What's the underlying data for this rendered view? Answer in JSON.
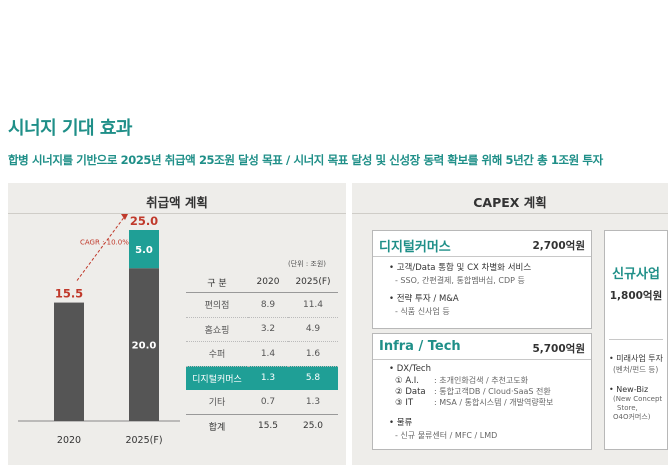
{
  "page": {
    "title": "시너지 기대 효과",
    "subtitle": "합병 시너지를 기반으로 2025년 취급액 25조원 달성 목표 / 시너지 목표 달성 및 신성장 동력 확보를 위해 5년간 총 1조원 투자"
  },
  "left_panel": {
    "title": "취급액 계획",
    "cagr": "CAGR : 10.0%"
  },
  "chart_data": {
    "type": "bar",
    "categories": [
      "2020",
      "2025(F)"
    ],
    "series": [
      {
        "values": [
          15.5,
          20.0
        ]
      },
      {
        "values": [
          0,
          5.0
        ]
      }
    ],
    "totals": [
      15.5,
      25.0
    ],
    "ylim": [
      0,
      25
    ],
    "colors": [
      "#555555",
      "#1f9f96"
    ],
    "cagr": "CAGR : 10.0%"
  },
  "table": {
    "unit": "(단위 : 조원)",
    "headers": [
      "구 분",
      "2020",
      "2025(F)"
    ],
    "rows": [
      {
        "label": "편의점",
        "v2020": "8.9",
        "v2025": "11.4",
        "highlight": false
      },
      {
        "label": "홈쇼핑",
        "v2020": "3.2",
        "v2025": "4.9",
        "highlight": false
      },
      {
        "label": "수퍼",
        "v2020": "1.4",
        "v2025": "1.6",
        "highlight": false
      },
      {
        "label": "디지털커머스",
        "v2020": "1.3",
        "v2025": "5.8",
        "highlight": true
      },
      {
        "label": "기타",
        "v2020": "0.7",
        "v2025": "1.3",
        "highlight": false
      }
    ],
    "total": {
      "label": "합계",
      "v2020": "15.5",
      "v2025": "25.0"
    }
  },
  "capex": {
    "title": "CAPEX 계획",
    "digital": {
      "title": "디지털커머스",
      "amount": "2,700억원",
      "item1": "• 고객/Data 통합 및 CX 차별화 서비스",
      "item1_sub": "- SSO, 간편결제, 통합멤버십, CDP 등",
      "item2": "• 전략 투자 / M&A",
      "item2_sub": "- 식품 신사업 등"
    },
    "infra": {
      "title": "Infra / Tech",
      "amount": "5,700억원",
      "dx": "• DX/Tech",
      "dx_items": [
        {
          "num": "①",
          "key": "A.I.",
          "desc": ": 초개인화검색 / 추천고도화"
        },
        {
          "num": "②",
          "key": "Data",
          "desc": ": 통합고객DB / Cloud·SaaS 전환"
        },
        {
          "num": "③",
          "key": "IT",
          "desc": ": MSA / 통합시스템 / 개발역량확보"
        }
      ],
      "logistics": "• 물류",
      "logistics_sub": "- 신규 물류센터 / MFC / LMD"
    },
    "new_biz": {
      "title": "신규사업",
      "amount": "1,800억원",
      "item1_line1": "• 미래사업 투자",
      "item1_line2": "(벤처/펀드 등)",
      "item2": "• New-Biz",
      "item2_sub": [
        "(New Concept",
        "Store,",
        "O4O커머스)"
      ]
    }
  }
}
